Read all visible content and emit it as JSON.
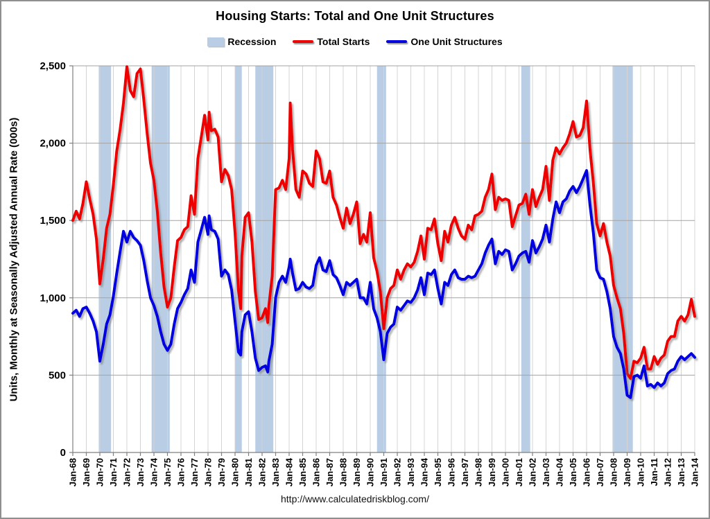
{
  "title": "Housing Starts: Total and One Unit Structures",
  "source_url": "http://www.calculatedriskblog.com/",
  "colors": {
    "recession": "#B9CDE5",
    "total_starts": "#EE0000",
    "one_unit": "#0000E0",
    "grid_vertical": "#D4D4D4",
    "grid_horizontal": "#A3A3A3",
    "axis": "#7F7F7F",
    "text": "#000000"
  },
  "legend": {
    "items": [
      {
        "label": "Recession",
        "type": "box",
        "color": "#B9CDE5"
      },
      {
        "label": "Total Starts",
        "type": "line",
        "color": "#EE0000"
      },
      {
        "label": "One Unit Structures",
        "type": "line",
        "color": "#0000E0"
      }
    ]
  },
  "y_axis": {
    "title": "Units, Monthly at Seasonally Adjusted Annual Rate (000s)",
    "tick_values": [
      0,
      500,
      1000,
      1500,
      2000,
      2500
    ],
    "tick_labels": [
      "0",
      "500",
      "1,000",
      "1,500",
      "2,000",
      "2,500"
    ]
  },
  "x_axis": {
    "tick_values": [
      1968,
      1969,
      1970,
      1971,
      1972,
      1973,
      1974,
      1975,
      1976,
      1977,
      1978,
      1979,
      1980,
      1981,
      1982,
      1983,
      1984,
      1985,
      1986,
      1987,
      1988,
      1989,
      1990,
      1991,
      1992,
      1993,
      1994,
      1995,
      1996,
      1997,
      1998,
      1999,
      2000,
      2001,
      2002,
      2003,
      2004,
      2005,
      2006,
      2007,
      2008,
      2009,
      2010,
      2011,
      2012,
      2013,
      2014
    ],
    "tick_labels": [
      "Jan-68",
      "Jan-69",
      "Jan-70",
      "Jan-71",
      "Jan-72",
      "Jan-73",
      "Jan-74",
      "Jan-75",
      "Jan-76",
      "Jan-77",
      "Jan-78",
      "Jan-79",
      "Jan-80",
      "Jan-81",
      "Jan-82",
      "Jan-83",
      "Jan-84",
      "Jan-85",
      "Jan-86",
      "Jan-87",
      "Jan-88",
      "Jan-89",
      "Jan-90",
      "Jan-91",
      "Jan-92",
      "Jan-93",
      "Jan-94",
      "Jan-95",
      "Jan-96",
      "Jan-97",
      "Jan-98",
      "Jan-99",
      "Jan-00",
      "Jan-01",
      "Jan-02",
      "Jan-03",
      "Jan-04",
      "Jan-05",
      "Jan-06",
      "Jan-07",
      "Jan-08",
      "Jan-09",
      "Jan-10",
      "Jan-11",
      "Jan-12",
      "Jan-13",
      "Jan-14"
    ]
  },
  "chart_data": {
    "type": "line",
    "title": "Housing Starts: Total and One Unit Structures",
    "xlabel": "",
    "ylabel": "Units, Monthly at Seasonally Adjusted Annual Rate (000s)",
    "xlim": [
      1968,
      2014
    ],
    "ylim": [
      0,
      2500
    ],
    "grid": true,
    "legend_position": "top",
    "x_unit": "decimal_year (Jan-68 = 1968.0)",
    "series_names": [
      "Total Starts",
      "One Unit Structures"
    ],
    "recessions": [
      {
        "start": 1969.92,
        "end": 1970.83
      },
      {
        "start": 1973.83,
        "end": 1975.17
      },
      {
        "start": 1980.0,
        "end": 1980.5
      },
      {
        "start": 1981.5,
        "end": 1982.83
      },
      {
        "start": 1990.5,
        "end": 1991.17
      },
      {
        "start": 2001.17,
        "end": 2001.83
      },
      {
        "start": 2007.92,
        "end": 2009.42
      }
    ],
    "points": [
      [
        1968,
        1500,
        900
      ],
      [
        1968.25,
        1560,
        920
      ],
      [
        1968.5,
        1510,
        880
      ],
      [
        1968.75,
        1610,
        930
      ],
      [
        1969,
        1750,
        940
      ],
      [
        1969.25,
        1640,
        900
      ],
      [
        1969.5,
        1540,
        850
      ],
      [
        1969.75,
        1380,
        780
      ],
      [
        1970,
        1090,
        590
      ],
      [
        1970.25,
        1250,
        700
      ],
      [
        1970.5,
        1450,
        830
      ],
      [
        1970.75,
        1540,
        890
      ],
      [
        1971,
        1730,
        1010
      ],
      [
        1971.25,
        1950,
        1160
      ],
      [
        1971.5,
        2090,
        1300
      ],
      [
        1971.75,
        2260,
        1430
      ],
      [
        1972,
        2494,
        1360
      ],
      [
        1972.25,
        2340,
        1430
      ],
      [
        1972.5,
        2300,
        1390
      ],
      [
        1972.75,
        2450,
        1370
      ],
      [
        1973,
        2480,
        1340
      ],
      [
        1973.25,
        2280,
        1240
      ],
      [
        1973.5,
        2060,
        1110
      ],
      [
        1973.75,
        1870,
        1000
      ],
      [
        1974,
        1760,
        950
      ],
      [
        1974.25,
        1560,
        880
      ],
      [
        1974.5,
        1290,
        780
      ],
      [
        1974.75,
        1070,
        700
      ],
      [
        1975,
        940,
        660
      ],
      [
        1975.25,
        1000,
        700
      ],
      [
        1975.5,
        1200,
        830
      ],
      [
        1975.75,
        1370,
        930
      ],
      [
        1976,
        1390,
        970
      ],
      [
        1976.25,
        1440,
        1020
      ],
      [
        1976.5,
        1460,
        1060
      ],
      [
        1976.75,
        1660,
        1180
      ],
      [
        1977,
        1540,
        1100
      ],
      [
        1977.25,
        1900,
        1360
      ],
      [
        1977.5,
        2040,
        1440
      ],
      [
        1977.75,
        2180,
        1520
      ],
      [
        1978,
        2020,
        1410
      ],
      [
        1978.08,
        2200,
        1530
      ],
      [
        1978.25,
        2080,
        1440
      ],
      [
        1978.5,
        2090,
        1430
      ],
      [
        1978.75,
        2040,
        1380
      ],
      [
        1979,
        1750,
        1140
      ],
      [
        1979.25,
        1830,
        1180
      ],
      [
        1979.5,
        1790,
        1150
      ],
      [
        1979.75,
        1700,
        1050
      ],
      [
        1980,
        1420,
        850
      ],
      [
        1980.25,
        1050,
        650
      ],
      [
        1980.42,
        930,
        630
      ],
      [
        1980.5,
        1270,
        780
      ],
      [
        1980.75,
        1520,
        890
      ],
      [
        1981,
        1550,
        910
      ],
      [
        1981.25,
        1360,
        780
      ],
      [
        1981.5,
        1040,
        610
      ],
      [
        1981.75,
        860,
        530
      ],
      [
        1982,
        870,
        550
      ],
      [
        1982.25,
        930,
        560
      ],
      [
        1982.42,
        840,
        520
      ],
      [
        1982.5,
        950,
        590
      ],
      [
        1982.75,
        1140,
        700
      ],
      [
        1983,
        1700,
        1000
      ],
      [
        1983.25,
        1710,
        1100
      ],
      [
        1983.5,
        1760,
        1140
      ],
      [
        1983.75,
        1700,
        1100
      ],
      [
        1984,
        1900,
        1200
      ],
      [
        1984.08,
        2260,
        1250
      ],
      [
        1984.25,
        1960,
        1160
      ],
      [
        1984.5,
        1700,
        1050
      ],
      [
        1984.75,
        1650,
        1060
      ],
      [
        1985,
        1820,
        1100
      ],
      [
        1985.25,
        1800,
        1070
      ],
      [
        1985.5,
        1740,
        1060
      ],
      [
        1985.75,
        1720,
        1080
      ],
      [
        1986,
        1950,
        1210
      ],
      [
        1986.25,
        1900,
        1260
      ],
      [
        1986.5,
        1750,
        1180
      ],
      [
        1986.75,
        1740,
        1170
      ],
      [
        1987,
        1820,
        1240
      ],
      [
        1987.25,
        1650,
        1150
      ],
      [
        1987.5,
        1600,
        1130
      ],
      [
        1987.75,
        1520,
        1080
      ],
      [
        1988,
        1450,
        1020
      ],
      [
        1988.25,
        1580,
        1100
      ],
      [
        1988.5,
        1480,
        1080
      ],
      [
        1988.75,
        1540,
        1100
      ],
      [
        1989,
        1620,
        1120
      ],
      [
        1989.25,
        1350,
        1000
      ],
      [
        1989.5,
        1410,
        1000
      ],
      [
        1989.75,
        1360,
        960
      ],
      [
        1990,
        1550,
        1100
      ],
      [
        1990.25,
        1260,
        930
      ],
      [
        1990.5,
        1170,
        870
      ],
      [
        1990.75,
        1040,
        780
      ],
      [
        1991,
        800,
        600
      ],
      [
        1991.25,
        1000,
        770
      ],
      [
        1991.5,
        1060,
        810
      ],
      [
        1991.75,
        1080,
        830
      ],
      [
        1992,
        1180,
        940
      ],
      [
        1992.25,
        1120,
        920
      ],
      [
        1992.5,
        1180,
        950
      ],
      [
        1992.75,
        1220,
        980
      ],
      [
        1993,
        1200,
        970
      ],
      [
        1993.25,
        1230,
        1000
      ],
      [
        1993.5,
        1300,
        1050
      ],
      [
        1993.75,
        1400,
        1130
      ],
      [
        1994,
        1250,
        1020
      ],
      [
        1994.25,
        1450,
        1160
      ],
      [
        1994.5,
        1440,
        1150
      ],
      [
        1994.75,
        1510,
        1180
      ],
      [
        1995,
        1350,
        1060
      ],
      [
        1995.25,
        1240,
        960
      ],
      [
        1995.5,
        1430,
        1100
      ],
      [
        1995.75,
        1360,
        1080
      ],
      [
        1996,
        1470,
        1150
      ],
      [
        1996.25,
        1520,
        1180
      ],
      [
        1996.5,
        1450,
        1130
      ],
      [
        1996.75,
        1400,
        1120
      ],
      [
        1997,
        1380,
        1120
      ],
      [
        1997.25,
        1470,
        1140
      ],
      [
        1997.5,
        1440,
        1130
      ],
      [
        1997.75,
        1530,
        1140
      ],
      [
        1998,
        1540,
        1180
      ],
      [
        1998.25,
        1560,
        1220
      ],
      [
        1998.5,
        1650,
        1290
      ],
      [
        1998.75,
        1700,
        1340
      ],
      [
        1999,
        1800,
        1380
      ],
      [
        1999.25,
        1570,
        1220
      ],
      [
        1999.5,
        1650,
        1300
      ],
      [
        1999.75,
        1630,
        1280
      ],
      [
        2000,
        1640,
        1310
      ],
      [
        2000.25,
        1630,
        1300
      ],
      [
        2000.5,
        1460,
        1180
      ],
      [
        2000.75,
        1530,
        1220
      ],
      [
        2001,
        1600,
        1270
      ],
      [
        2001.25,
        1610,
        1290
      ],
      [
        2001.5,
        1670,
        1300
      ],
      [
        2001.75,
        1540,
        1230
      ],
      [
        2002,
        1700,
        1370
      ],
      [
        2002.25,
        1590,
        1290
      ],
      [
        2002.5,
        1650,
        1330
      ],
      [
        2002.75,
        1700,
        1380
      ],
      [
        2003,
        1850,
        1470
      ],
      [
        2003.25,
        1630,
        1360
      ],
      [
        2003.5,
        1890,
        1510
      ],
      [
        2003.75,
        1970,
        1620
      ],
      [
        2004,
        1930,
        1550
      ],
      [
        2004.25,
        1970,
        1620
      ],
      [
        2004.5,
        2000,
        1640
      ],
      [
        2004.75,
        2060,
        1690
      ],
      [
        2005,
        2140,
        1720
      ],
      [
        2005.25,
        2040,
        1680
      ],
      [
        2005.5,
        2050,
        1720
      ],
      [
        2005.75,
        2100,
        1770
      ],
      [
        2006,
        2273,
        1823
      ],
      [
        2006.25,
        1960,
        1600
      ],
      [
        2006.5,
        1740,
        1420
      ],
      [
        2006.75,
        1480,
        1180
      ],
      [
        2007,
        1400,
        1130
      ],
      [
        2007.25,
        1480,
        1120
      ],
      [
        2007.5,
        1360,
        1040
      ],
      [
        2007.75,
        1270,
        930
      ],
      [
        2008,
        1080,
        750
      ],
      [
        2008.25,
        1000,
        680
      ],
      [
        2008.5,
        930,
        640
      ],
      [
        2008.75,
        770,
        540
      ],
      [
        2009,
        510,
        370
      ],
      [
        2009.25,
        478,
        355
      ],
      [
        2009.5,
        590,
        490
      ],
      [
        2009.75,
        580,
        500
      ],
      [
        2010,
        610,
        480
      ],
      [
        2010.25,
        680,
        560
      ],
      [
        2010.5,
        540,
        430
      ],
      [
        2010.75,
        540,
        440
      ],
      [
        2011,
        620,
        420
      ],
      [
        2011.25,
        570,
        450
      ],
      [
        2011.5,
        610,
        430
      ],
      [
        2011.75,
        630,
        450
      ],
      [
        2012,
        720,
        510
      ],
      [
        2012.25,
        750,
        530
      ],
      [
        2012.5,
        750,
        540
      ],
      [
        2012.75,
        850,
        590
      ],
      [
        2013,
        880,
        620
      ],
      [
        2013.25,
        850,
        600
      ],
      [
        2013.5,
        890,
        620
      ],
      [
        2013.75,
        990,
        640
      ],
      [
        2014,
        880,
        615
      ]
    ]
  }
}
